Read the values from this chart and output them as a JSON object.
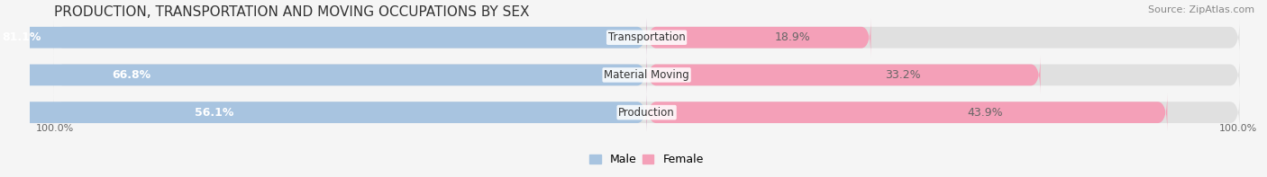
{
  "title": "PRODUCTION, TRANSPORTATION AND MOVING OCCUPATIONS BY SEX",
  "source": "Source: ZipAtlas.com",
  "categories": [
    "Transportation",
    "Material Moving",
    "Production"
  ],
  "male_values": [
    81.1,
    66.8,
    56.1
  ],
  "female_values": [
    18.9,
    33.2,
    43.9
  ],
  "male_color": "#a8c4e0",
  "female_color": "#f4a0b8",
  "label_color_male": "#7aaac8",
  "label_color_female": "#e87da0",
  "bg_color": "#f0f0f0",
  "bar_bg_color": "#e8e8e8",
  "title_fontsize": 11,
  "source_fontsize": 8,
  "bar_label_fontsize": 9,
  "category_fontsize": 8.5,
  "legend_fontsize": 9,
  "axis_label_fontsize": 8,
  "bar_height": 0.55,
  "fig_width": 14.06,
  "fig_height": 1.97
}
